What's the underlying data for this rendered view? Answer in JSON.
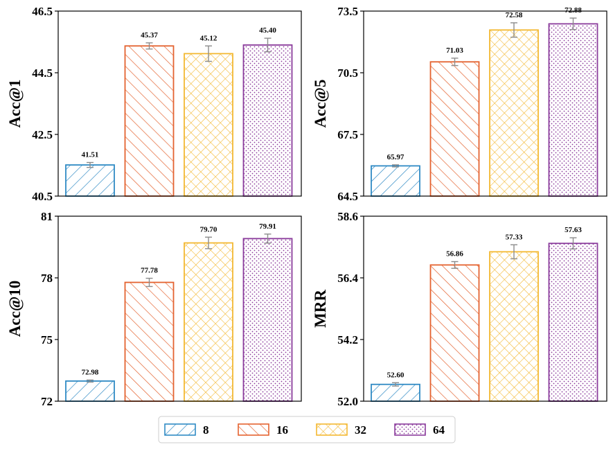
{
  "chart_data": [
    {
      "type": "bar",
      "title": "",
      "xlabel": "",
      "ylabel": "Acc@1",
      "ylim": [
        40.5,
        46.5
      ],
      "yticks": [
        "40.5",
        "42.5",
        "44.5",
        "46.5"
      ],
      "categories": [
        "8",
        "16",
        "32",
        "64"
      ],
      "values": [
        41.51,
        45.37,
        45.12,
        45.4
      ],
      "errors": [
        0.08,
        0.1,
        0.25,
        0.22
      ],
      "labels": [
        "41.51",
        "45.37",
        "45.12",
        "45.40"
      ]
    },
    {
      "type": "bar",
      "title": "",
      "xlabel": "",
      "ylabel": "Acc@5",
      "ylim": [
        64.5,
        73.5
      ],
      "yticks": [
        "64.5",
        "67.5",
        "70.5",
        "73.5"
      ],
      "categories": [
        "8",
        "16",
        "32",
        "64"
      ],
      "values": [
        65.97,
        71.03,
        72.58,
        72.88
      ],
      "errors": [
        0.05,
        0.18,
        0.35,
        0.28
      ],
      "labels": [
        "65.97",
        "71.03",
        "72.58",
        "72.88"
      ]
    },
    {
      "type": "bar",
      "title": "",
      "xlabel": "",
      "ylabel": "Acc@10",
      "ylim": [
        72,
        81
      ],
      "yticks": [
        "72",
        "75",
        "78",
        "81"
      ],
      "categories": [
        "8",
        "16",
        "32",
        "64"
      ],
      "values": [
        72.98,
        77.78,
        79.7,
        79.91
      ],
      "errors": [
        0.05,
        0.2,
        0.28,
        0.22
      ],
      "labels": [
        "72.98",
        "77.78",
        "79.70",
        "79.91"
      ]
    },
    {
      "type": "bar",
      "title": "",
      "xlabel": "",
      "ylabel": "MRR",
      "ylim": [
        52.0,
        58.6
      ],
      "yticks": [
        "52.0",
        "54.2",
        "56.4",
        "58.6"
      ],
      "categories": [
        "8",
        "16",
        "32",
        "64"
      ],
      "values": [
        52.6,
        56.86,
        57.33,
        57.63
      ],
      "errors": [
        0.06,
        0.12,
        0.25,
        0.2
      ],
      "labels": [
        "52.60",
        "56.86",
        "57.33",
        "57.63"
      ]
    }
  ],
  "legend": {
    "position": "bottom-center",
    "entries": [
      "8",
      "16",
      "32",
      "64"
    ]
  },
  "colors": {
    "series": [
      "#2f8ac4",
      "#e4622f",
      "#f3b831",
      "#8b3c9c"
    ],
    "error_bar": "#8c8c8c",
    "axis": "#000000"
  },
  "patterns": [
    "diagonal-forward",
    "diagonal-backward",
    "crosshatch",
    "dots"
  ]
}
